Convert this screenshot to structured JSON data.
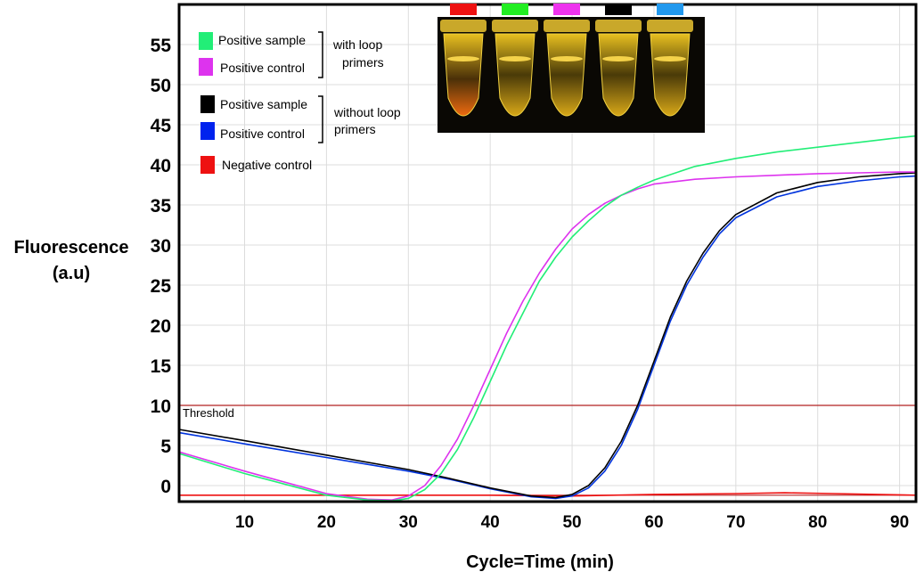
{
  "chart_data": {
    "type": "line",
    "xlabel": "Cycle=Time (min)",
    "ylabel_line1": "Fluorescence",
    "ylabel_line2": "(a.u)",
    "xlim": [
      2,
      92
    ],
    "ylim": [
      -2,
      60
    ],
    "xticks": [
      10,
      20,
      30,
      40,
      50,
      60,
      70,
      80,
      90
    ],
    "yticks": [
      0,
      5,
      10,
      15,
      20,
      25,
      30,
      35,
      40,
      45,
      50,
      55
    ],
    "grid": true,
    "threshold": {
      "label": "Threshold",
      "value": 10,
      "color": "#b22222"
    },
    "baseline_value": -1.2,
    "legend": {
      "placement": "top-left",
      "group1_label_line1": "with loop",
      "group1_label_line2": "primers",
      "group2_label_line1": "without loop",
      "group2_label_line2": "primers"
    },
    "series": [
      {
        "name": "Positive sample",
        "group": 1,
        "color": "#22ee77",
        "x": [
          2,
          10,
          20,
          25,
          28,
          30,
          32,
          34,
          36,
          38,
          40,
          42,
          44,
          46,
          48,
          50,
          52,
          54,
          56,
          58,
          60,
          65,
          70,
          75,
          80,
          85,
          90,
          92
        ],
        "y": [
          4,
          1.5,
          -1.2,
          -1.8,
          -1.9,
          -1.6,
          -0.5,
          1.5,
          4.5,
          8.5,
          13,
          17.5,
          21.5,
          25.5,
          28.5,
          31,
          33,
          34.8,
          36.2,
          37.2,
          38.1,
          39.8,
          40.8,
          41.6,
          42.2,
          42.8,
          43.4,
          43.6
        ]
      },
      {
        "name": "Positive control",
        "group": 1,
        "color": "#dd33ee",
        "x": [
          2,
          10,
          20,
          25,
          28,
          30,
          32,
          34,
          36,
          38,
          40,
          42,
          44,
          46,
          48,
          50,
          52,
          54,
          56,
          58,
          60,
          65,
          70,
          75,
          80,
          85,
          90,
          92
        ],
        "y": [
          4.2,
          1.8,
          -1,
          -1.7,
          -1.8,
          -1.3,
          0,
          2.5,
          5.8,
          10,
          14.5,
          19,
          23,
          26.5,
          29.5,
          32,
          33.8,
          35.2,
          36.2,
          37,
          37.6,
          38.2,
          38.5,
          38.7,
          38.9,
          39,
          39.1,
          39.1
        ]
      },
      {
        "name": "Positive sample",
        "group": 2,
        "color": "#000000",
        "x": [
          2,
          10,
          20,
          30,
          35,
          40,
          45,
          48,
          50,
          52,
          54,
          56,
          58,
          60,
          62,
          64,
          66,
          68,
          70,
          75,
          80,
          85,
          90,
          92
        ],
        "y": [
          7,
          5.6,
          3.8,
          2,
          0.9,
          -0.3,
          -1.3,
          -1.5,
          -1.1,
          0,
          2.2,
          5.5,
          10,
          15.5,
          21,
          25.5,
          29,
          31.8,
          33.8,
          36.5,
          37.8,
          38.5,
          38.9,
          39
        ]
      },
      {
        "name": "Positive control",
        "group": 2,
        "color": "#0033dd",
        "x": [
          2,
          10,
          20,
          30,
          35,
          40,
          45,
          48,
          50,
          52,
          54,
          56,
          58,
          60,
          62,
          64,
          66,
          68,
          70,
          75,
          80,
          85,
          90,
          92
        ],
        "y": [
          6.6,
          5.2,
          3.5,
          1.8,
          0.8,
          -0.4,
          -1.4,
          -1.6,
          -1.3,
          -0.3,
          1.8,
          5,
          9.5,
          15,
          20.5,
          25,
          28.5,
          31.4,
          33.4,
          36,
          37.3,
          38,
          38.5,
          38.6
        ]
      },
      {
        "name": "Negative control",
        "group": 0,
        "color": "#ee1111",
        "x": [
          2,
          20,
          30,
          40,
          50,
          60,
          70,
          76,
          82,
          92
        ],
        "y": [
          -1.2,
          -1.2,
          -1.2,
          -1.2,
          -1.3,
          -1.1,
          -1,
          -0.9,
          -1,
          -1.2
        ]
      }
    ]
  },
  "inset": {
    "tube_colors": [
      "#ee1111",
      "#22ee22",
      "#ee33ee",
      "#000000",
      "#2299ee"
    ]
  }
}
